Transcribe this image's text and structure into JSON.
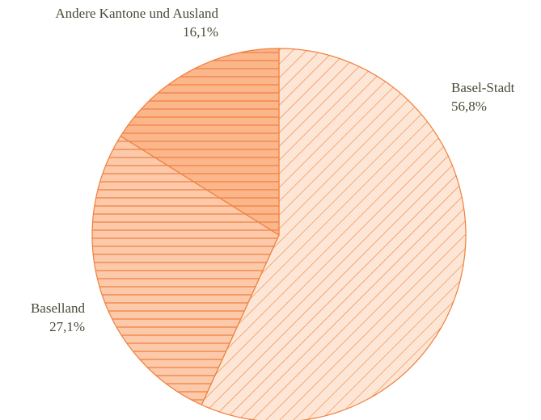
{
  "chart_data": {
    "type": "pie",
    "categories": [
      "Basel-Stadt",
      "Baselland",
      "Andere Kantone und Ausland"
    ],
    "values": [
      56.8,
      27.1,
      16.1
    ],
    "value_labels": [
      "56,8%",
      "27,1%",
      "16,1%"
    ],
    "colors": [
      "#fde6d5",
      "#fcc9aa",
      "#fbb68c"
    ],
    "edgecolor": "#f07f3c"
  }
}
